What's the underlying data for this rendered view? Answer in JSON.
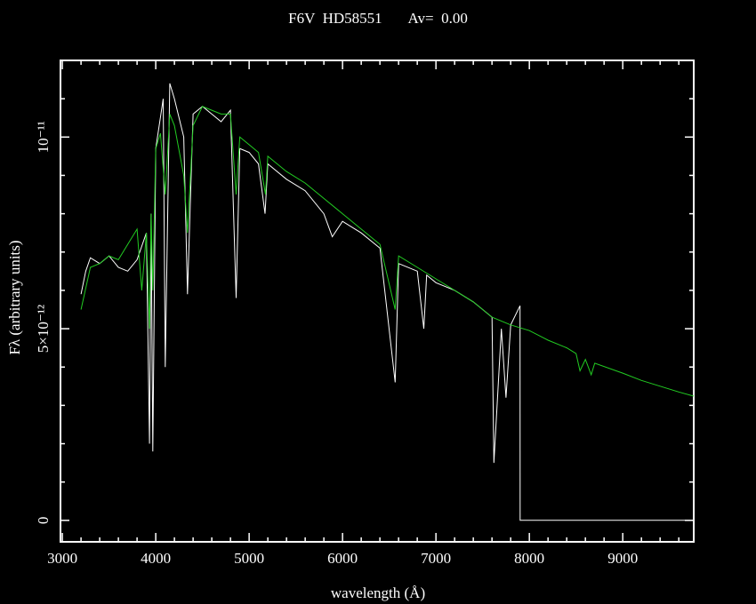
{
  "chart_data": {
    "type": "line",
    "title": "F6V  HD58551       Av=  0.00",
    "xlabel": "wavelength (Å)",
    "ylabel": "Fλ (arbitrary units)",
    "xlim": [
      2980,
      9760
    ],
    "ylim": [
      -5.6e-13,
      1.2e-11
    ],
    "xticks": [
      3000,
      4000,
      5000,
      6000,
      7000,
      8000,
      9000
    ],
    "xminor": [
      3200,
      3400,
      3600,
      3800,
      4200,
      4400,
      4600,
      4800,
      5200,
      5400,
      5600,
      5800,
      6200,
      6400,
      6600,
      6800,
      7200,
      7400,
      7600,
      7800,
      8200,
      8400,
      8600,
      8800,
      9200,
      9400,
      9600
    ],
    "yticks": [
      0,
      {
        "value": 5e-12,
        "label": "5×10⁻¹²"
      },
      {
        "value": 1e-11,
        "label": "10⁻¹¹"
      }
    ],
    "yminor": [
      1e-12,
      2e-12,
      3e-12,
      4e-12,
      6e-12,
      7e-12,
      8e-12,
      9e-12,
      1.1e-11
    ],
    "series": [
      {
        "color": "#ffffff",
        "x": [
          3200,
          3250,
          3300,
          3400,
          3500,
          3600,
          3700,
          3800,
          3900,
          3933,
          3950,
          3968,
          4000,
          4080,
          4102,
          4150,
          4200,
          4300,
          4340,
          4400,
          4500,
          4600,
          4700,
          4800,
          4861,
          4900,
          5000,
          5100,
          5170,
          5200,
          5400,
          5600,
          5800,
          5890,
          6000,
          6200,
          6400,
          6563,
          6600,
          6800,
          6870,
          6900,
          7000,
          7200,
          7400,
          7600,
          7620,
          7700,
          7750,
          7800,
          7900,
          7901,
          9760
        ],
        "values": [
          5.9e-12,
          6.5e-12,
          6.85e-12,
          6.7e-12,
          6.9e-12,
          6.6e-12,
          6.5e-12,
          6.8e-12,
          7.5e-12,
          2e-12,
          8e-12,
          1.8e-12,
          9.7e-12,
          1.1e-11,
          4e-12,
          1.14e-11,
          1.1e-11,
          1e-11,
          5.9e-12,
          1.06e-11,
          1.08e-11,
          1.06e-11,
          1.04e-11,
          1.07e-11,
          5.8e-12,
          9.7e-12,
          9.6e-12,
          9.3e-12,
          8e-12,
          9.3e-12,
          8.9e-12,
          8.6e-12,
          8e-12,
          7.4e-12,
          7.8e-12,
          7.5e-12,
          7.1e-12,
          3.6e-12,
          6.7e-12,
          6.5e-12,
          5e-12,
          6.4e-12,
          6.2e-12,
          6e-12,
          5.7e-12,
          5.3e-12,
          1.5e-12,
          5e-12,
          3.2e-12,
          5.1e-12,
          5.6e-12,
          0,
          0
        ]
      },
      {
        "color": "#22cc22",
        "x": [
          3200,
          3300,
          3400,
          3500,
          3600,
          3700,
          3800,
          3850,
          3900,
          3933,
          3950,
          3968,
          4000,
          4050,
          4102,
          4150,
          4200,
          4300,
          4340,
          4400,
          4500,
          4600,
          4700,
          4800,
          4861,
          4900,
          5000,
          5100,
          5175,
          5200,
          5400,
          5600,
          5800,
          6000,
          6200,
          6400,
          6563,
          6600,
          6800,
          7000,
          7200,
          7400,
          7600,
          7800,
          8000,
          8200,
          8400,
          8500,
          8542,
          8600,
          8662,
          8700,
          9000,
          9200,
          9400,
          9600,
          9760
        ],
        "values": [
          5.5e-12,
          6.6e-12,
          6.7e-12,
          6.9e-12,
          6.8e-12,
          7.2e-12,
          7.6e-12,
          6e-12,
          7.5e-12,
          5e-12,
          8e-12,
          6e-12,
          9.7e-12,
          1.01e-11,
          8.5e-12,
          1.06e-11,
          1.03e-11,
          9e-12,
          7.5e-12,
          1.03e-11,
          1.08e-11,
          1.07e-11,
          1.06e-11,
          1.06e-11,
          8.5e-12,
          1e-11,
          9.8e-12,
          9.6e-12,
          8.5e-12,
          9.5e-12,
          9.1e-12,
          8.8e-12,
          8.4e-12,
          8e-12,
          7.6e-12,
          7.2e-12,
          5.5e-12,
          6.9e-12,
          6.6e-12,
          6.3e-12,
          6e-12,
          5.7e-12,
          5.3e-12,
          5.1e-12,
          4.95e-12,
          4.7e-12,
          4.5e-12,
          4.35e-12,
          3.9e-12,
          4.2e-12,
          3.8e-12,
          4.1e-12,
          3.84e-12,
          3.65e-12,
          3.5e-12,
          3.35e-12,
          3.24e-12
        ]
      }
    ]
  }
}
